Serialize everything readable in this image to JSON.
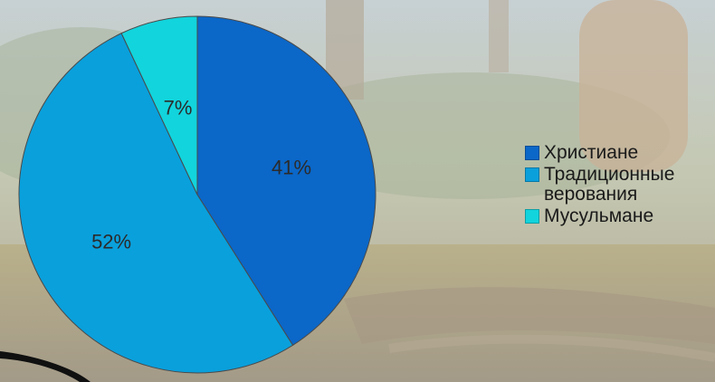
{
  "chart_data": {
    "type": "pie",
    "slices": [
      {
        "label": "Христиане",
        "value": 41,
        "display": "41%",
        "color": "#0b67c8"
      },
      {
        "label": "Традиционные верования",
        "value": 52,
        "display": "52%",
        "color": "#0aa0dc"
      },
      {
        "label": "Мусульмане",
        "value": 7,
        "display": "7%",
        "color": "#12d4dc"
      }
    ],
    "start_angle": "12 o'clock",
    "direction": "clockwise",
    "legend_position": "right"
  }
}
